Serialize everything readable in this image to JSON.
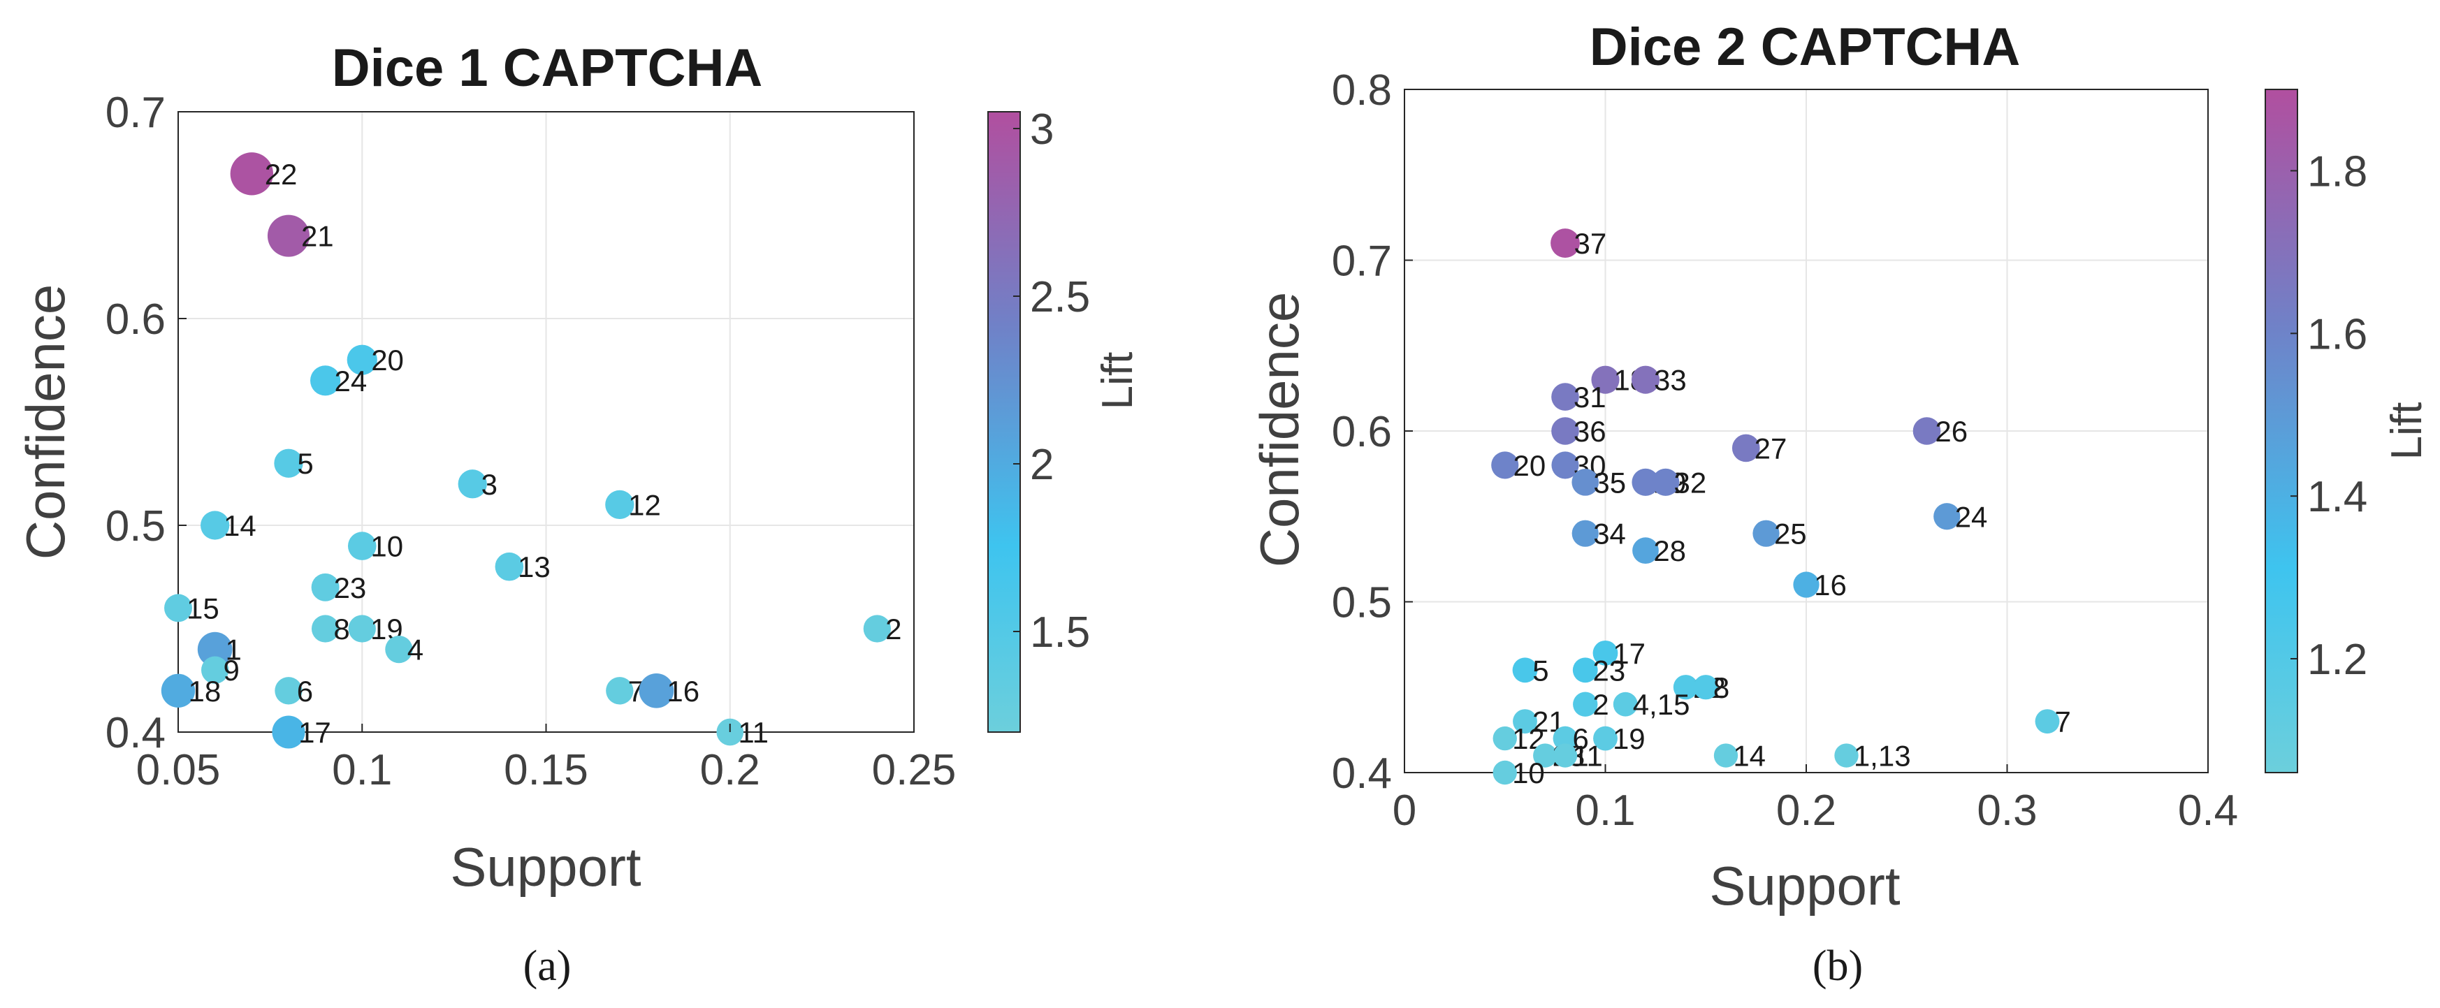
{
  "figure": {
    "colors": {
      "low": "#6ccfdc",
      "mid1": "#3ec4ef",
      "mid2": "#6f82c8",
      "high": "#b14f9f",
      "grid": "#e6e6e6",
      "axis": "#262626"
    }
  },
  "chart_data": [
    {
      "type": "scatter",
      "title": "Dice 1 CAPTCHA",
      "xlabel": "Support",
      "ylabel": "Confidence",
      "colorbar_label": "Lift",
      "caption": "(a)",
      "xlim": [
        0.05,
        0.25
      ],
      "ylim": [
        0.4,
        0.7
      ],
      "xticks": [
        0.05,
        0.1,
        0.15,
        0.2,
        0.25
      ],
      "xtick_labels": [
        "0.05",
        "0.1",
        "0.15",
        "0.2",
        "0.25"
      ],
      "yticks": [
        0.4,
        0.5,
        0.6,
        0.7
      ],
      "ytick_labels": [
        "0.4",
        "0.5",
        "0.6",
        "0.7"
      ],
      "clim": [
        1.2,
        3.05
      ],
      "cticks": [
        1.5,
        2,
        2.5,
        3
      ],
      "ctick_labels": [
        "1.5",
        "2",
        "2.5",
        "3"
      ],
      "grid": true,
      "points": [
        {
          "label": "22",
          "x": 0.07,
          "y": 0.67,
          "lift": 3.0
        },
        {
          "label": "21",
          "x": 0.08,
          "y": 0.64,
          "lift": 2.9
        },
        {
          "label": "20",
          "x": 0.1,
          "y": 0.58,
          "lift": 1.6
        },
        {
          "label": "24",
          "x": 0.09,
          "y": 0.57,
          "lift": 1.6
        },
        {
          "label": "5",
          "x": 0.08,
          "y": 0.53,
          "lift": 1.45
        },
        {
          "label": "3",
          "x": 0.13,
          "y": 0.52,
          "lift": 1.45
        },
        {
          "label": "12",
          "x": 0.17,
          "y": 0.51,
          "lift": 1.45
        },
        {
          "label": "14",
          "x": 0.06,
          "y": 0.5,
          "lift": 1.45
        },
        {
          "label": "10",
          "x": 0.1,
          "y": 0.49,
          "lift": 1.4
        },
        {
          "label": "13",
          "x": 0.14,
          "y": 0.48,
          "lift": 1.4
        },
        {
          "label": "23",
          "x": 0.09,
          "y": 0.47,
          "lift": 1.35
        },
        {
          "label": "15",
          "x": 0.05,
          "y": 0.46,
          "lift": 1.35
        },
        {
          "label": "8",
          "x": 0.09,
          "y": 0.45,
          "lift": 1.3
        },
        {
          "label": "19",
          "x": 0.1,
          "y": 0.45,
          "lift": 1.3
        },
        {
          "label": "2",
          "x": 0.24,
          "y": 0.45,
          "lift": 1.3
        },
        {
          "label": "1",
          "x": 0.06,
          "y": 0.44,
          "lift": 2.1
        },
        {
          "label": "4",
          "x": 0.11,
          "y": 0.44,
          "lift": 1.3
        },
        {
          "label": "9",
          "x": 0.06,
          "y": 0.43,
          "lift": 1.3
        },
        {
          "label": "6",
          "x": 0.08,
          "y": 0.42,
          "lift": 1.3
        },
        {
          "label": "18",
          "x": 0.05,
          "y": 0.42,
          "lift": 2.0
        },
        {
          "label": "7",
          "x": 0.17,
          "y": 0.42,
          "lift": 1.3
        },
        {
          "label": "16",
          "x": 0.18,
          "y": 0.42,
          "lift": 2.1
        },
        {
          "label": "17",
          "x": 0.08,
          "y": 0.4,
          "lift": 1.9
        },
        {
          "label": "11",
          "x": 0.2,
          "y": 0.4,
          "lift": 1.25
        }
      ]
    },
    {
      "type": "scatter",
      "title": "Dice 2 CAPTCHA",
      "xlabel": "Support",
      "ylabel": "Confidence",
      "colorbar_label": "Lift",
      "caption": "(b)",
      "xlim": [
        0,
        0.4
      ],
      "ylim": [
        0.4,
        0.8
      ],
      "xticks": [
        0,
        0.1,
        0.2,
        0.3,
        0.4
      ],
      "xtick_labels": [
        "0",
        "0.1",
        "0.2",
        "0.3",
        "0.4"
      ],
      "yticks": [
        0.4,
        0.5,
        0.6,
        0.7,
        0.8
      ],
      "ytick_labels": [
        "0.4",
        "0.5",
        "0.6",
        "0.7",
        "0.8"
      ],
      "clim": [
        1.06,
        1.9
      ],
      "cticks": [
        1.2,
        1.4,
        1.6,
        1.8
      ],
      "ctick_labels": [
        "1.2",
        "1.4",
        "1.6",
        "1.8"
      ],
      "grid": true,
      "points": [
        {
          "label": "37",
          "x": 0.08,
          "y": 0.71,
          "lift": 1.88
        },
        {
          "label": "18",
          "x": 0.1,
          "y": 0.63,
          "lift": 1.7
        },
        {
          "label": "33",
          "x": 0.12,
          "y": 0.63,
          "lift": 1.7
        },
        {
          "label": "31",
          "x": 0.08,
          "y": 0.62,
          "lift": 1.65
        },
        {
          "label": "36",
          "x": 0.08,
          "y": 0.6,
          "lift": 1.65
        },
        {
          "label": "26",
          "x": 0.26,
          "y": 0.6,
          "lift": 1.65
        },
        {
          "label": "27",
          "x": 0.17,
          "y": 0.59,
          "lift": 1.65
        },
        {
          "label": "20",
          "x": 0.05,
          "y": 0.58,
          "lift": 1.6
        },
        {
          "label": "30",
          "x": 0.08,
          "y": 0.58,
          "lift": 1.6
        },
        {
          "label": "35",
          "x": 0.09,
          "y": 0.57,
          "lift": 1.55
        },
        {
          "label": "29",
          "x": 0.12,
          "y": 0.57,
          "lift": 1.6
        },
        {
          "label": "32",
          "x": 0.13,
          "y": 0.57,
          "lift": 1.6
        },
        {
          "label": "24",
          "x": 0.27,
          "y": 0.55,
          "lift": 1.5
        },
        {
          "label": "34",
          "x": 0.09,
          "y": 0.54,
          "lift": 1.5
        },
        {
          "label": "25",
          "x": 0.18,
          "y": 0.54,
          "lift": 1.5
        },
        {
          "label": "28",
          "x": 0.12,
          "y": 0.53,
          "lift": 1.45
        },
        {
          "label": "16",
          "x": 0.2,
          "y": 0.51,
          "lift": 1.4
        },
        {
          "label": "17",
          "x": 0.1,
          "y": 0.47,
          "lift": 1.25
        },
        {
          "label": "5",
          "x": 0.06,
          "y": 0.46,
          "lift": 1.25
        },
        {
          "label": "23",
          "x": 0.09,
          "y": 0.46,
          "lift": 1.25
        },
        {
          "label": "22",
          "x": 0.14,
          "y": 0.45,
          "lift": 1.2
        },
        {
          "label": "8",
          "x": 0.15,
          "y": 0.45,
          "lift": 1.2
        },
        {
          "label": "2",
          "x": 0.09,
          "y": 0.44,
          "lift": 1.2
        },
        {
          "label": "4,15",
          "x": 0.11,
          "y": 0.44,
          "lift": 1.15
        },
        {
          "label": "7",
          "x": 0.32,
          "y": 0.43,
          "lift": 1.15
        },
        {
          "label": "21",
          "x": 0.06,
          "y": 0.43,
          "lift": 1.15
        },
        {
          "label": "12",
          "x": 0.05,
          "y": 0.42,
          "lift": 1.1
        },
        {
          "label": "6",
          "x": 0.08,
          "y": 0.42,
          "lift": 1.15
        },
        {
          "label": "19",
          "x": 0.1,
          "y": 0.42,
          "lift": 1.15
        },
        {
          "label": "23",
          "x": 0.07,
          "y": 0.41,
          "lift": 1.1
        },
        {
          "label": "11",
          "x": 0.08,
          "y": 0.41,
          "lift": 1.1
        },
        {
          "label": "14",
          "x": 0.16,
          "y": 0.41,
          "lift": 1.1
        },
        {
          "label": "1,13",
          "x": 0.22,
          "y": 0.41,
          "lift": 1.1
        },
        {
          "label": "10",
          "x": 0.05,
          "y": 0.4,
          "lift": 1.1
        }
      ]
    }
  ]
}
